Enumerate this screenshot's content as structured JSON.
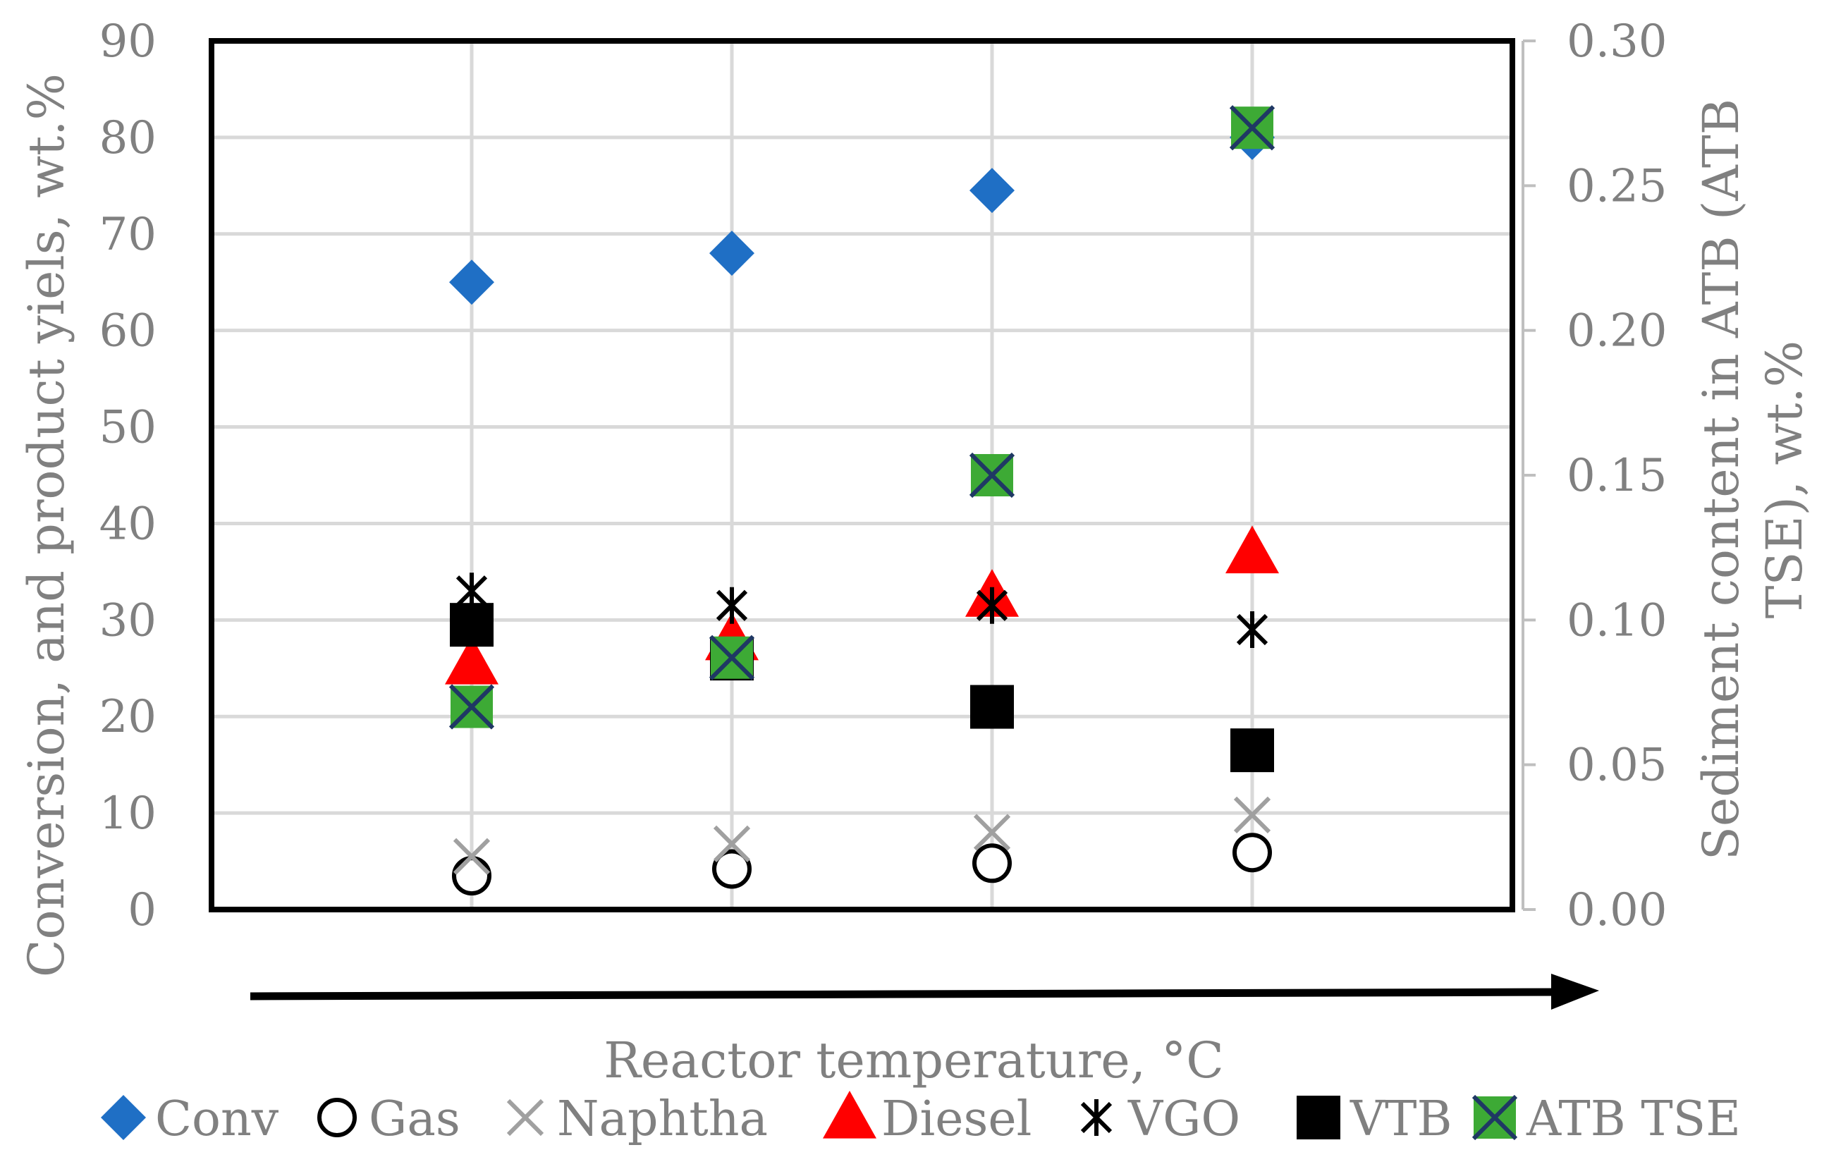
{
  "chart_data": {
    "type": "scatter",
    "title": "",
    "xlabel": "Reactor temperature, °C",
    "ylabel": "Conversion, and product yiels, wt.%",
    "y2label_line1": "Sediment content in ATB (ATB",
    "y2label_line2": "TSE), wt.%",
    "ylim": [
      0,
      90
    ],
    "y2lim": [
      0,
      0.3
    ],
    "y_ticks": [
      "0",
      "10",
      "20",
      "30",
      "40",
      "50",
      "60",
      "70",
      "80",
      "90"
    ],
    "y2_ticks": [
      "0.00",
      "0.05",
      "0.10",
      "0.15",
      "0.20",
      "0.25",
      "0.30"
    ],
    "x": [
      1,
      2,
      3,
      4
    ],
    "x_range": [
      0,
      5
    ],
    "grid": true,
    "legend_position": "bottom",
    "series": [
      {
        "name": "Conv",
        "marker": "diamond",
        "color": "#1F6FC5",
        "axis": "left",
        "values": [
          65,
          68,
          74.5,
          80
        ]
      },
      {
        "name": "Gas",
        "marker": "circle",
        "color": "#000000",
        "axis": "left",
        "values": [
          3.5,
          4.2,
          4.8,
          5.9
        ]
      },
      {
        "name": "Naphtha",
        "marker": "x",
        "color": "#A0A0A0",
        "axis": "left",
        "values": [
          5.5,
          6.8,
          8,
          9.8
        ]
      },
      {
        "name": "Diesel",
        "marker": "triangle",
        "color": "#FF0000",
        "axis": "left",
        "values": [
          25.5,
          28,
          32.5,
          37
        ]
      },
      {
        "name": "VGO",
        "marker": "star",
        "color": "#000000",
        "axis": "left",
        "values": [
          33,
          31.5,
          31.5,
          29
        ]
      },
      {
        "name": "VTB",
        "marker": "square",
        "color": "#000000",
        "axis": "left",
        "values": [
          29.5,
          26,
          21,
          16.5
        ]
      },
      {
        "name": "ATB TSE",
        "marker": "square-x",
        "color": "#3DAA35",
        "axis": "right",
        "values": [
          0.07,
          0.087,
          0.15,
          0.27
        ]
      }
    ]
  }
}
